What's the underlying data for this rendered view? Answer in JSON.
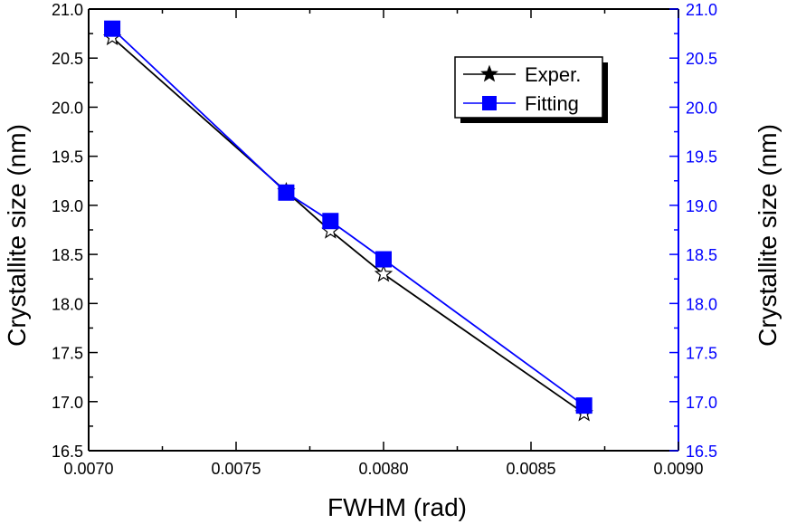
{
  "chart_data": {
    "type": "line",
    "xlabel": "FWHM (rad)",
    "ylabel_left": "Crystallite size (nm)",
    "ylabel_right": "Crystallite size (nm)",
    "xlim": [
      0.007,
      0.009
    ],
    "ylim": [
      16.5,
      21.0
    ],
    "x_ticks": [
      "0.0070",
      "0.0075",
      "0.0080",
      "0.0085",
      "0.0090"
    ],
    "y_ticks": [
      "16.5",
      "17.0",
      "17.5",
      "18.0",
      "18.5",
      "19.0",
      "19.5",
      "20.0",
      "20.5",
      "21.0"
    ],
    "x_tick_values": [
      0.007,
      0.0075,
      0.008,
      0.0085,
      0.009
    ],
    "y_tick_values": [
      16.5,
      17.0,
      17.5,
      18.0,
      18.5,
      19.0,
      19.5,
      20.0,
      20.5,
      21.0
    ],
    "grid": false,
    "legend_position": "top-right",
    "series": [
      {
        "name": "Exper.",
        "marker": "star",
        "color": "#000000",
        "points": [
          {
            "x": 0.00708,
            "y": 20.71
          },
          {
            "x": 0.00767,
            "y": 19.14
          },
          {
            "x": 0.00782,
            "y": 18.74
          },
          {
            "x": 0.008,
            "y": 18.3
          },
          {
            "x": 0.00868,
            "y": 16.88
          }
        ]
      },
      {
        "name": "Fitting",
        "marker": "square",
        "color": "#0000ff",
        "points": [
          {
            "x": 0.00708,
            "y": 20.8
          },
          {
            "x": 0.00767,
            "y": 19.13
          },
          {
            "x": 0.00782,
            "y": 18.84
          },
          {
            "x": 0.008,
            "y": 18.45
          },
          {
            "x": 0.00868,
            "y": 16.96
          }
        ]
      }
    ],
    "right_axis_color": "#0000ff"
  }
}
